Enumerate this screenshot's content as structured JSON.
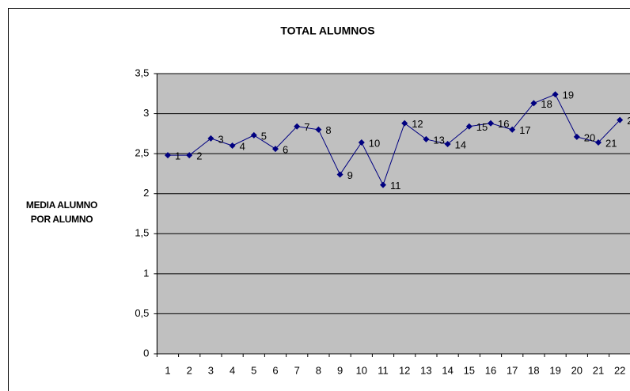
{
  "chart_data": {
    "type": "line",
    "title": "TOTAL ALUMNOS",
    "y_label": "MEDIA ALUMNO POR ALUMNO",
    "categories": [
      "1",
      "2",
      "3",
      "4",
      "5",
      "6",
      "7",
      "8",
      "9",
      "10",
      "11",
      "12",
      "13",
      "14",
      "15",
      "16",
      "17",
      "18",
      "19",
      "20",
      "21",
      "22"
    ],
    "series": [
      {
        "name": "TOTAL ALUMNOS",
        "color": "#000080",
        "values": [
          2.48,
          2.48,
          2.69,
          2.6,
          2.73,
          2.56,
          2.84,
          2.8,
          2.24,
          2.64,
          2.11,
          2.88,
          2.68,
          2.62,
          2.84,
          2.88,
          2.8,
          3.13,
          3.24,
          2.71,
          2.64,
          2.92
        ]
      }
    ],
    "ylim": [
      0,
      3.5
    ],
    "yticks": [
      0,
      {
        "value": 0.5,
        "label": "0,5"
      },
      1,
      {
        "value": 1.5,
        "label": "1,5"
      },
      2,
      {
        "value": 2.5,
        "label": "2,5"
      },
      3,
      {
        "value": 3.5,
        "label": "3,5"
      }
    ],
    "grid": true,
    "plot_background": "#c0c0c0",
    "data_labels": true
  }
}
